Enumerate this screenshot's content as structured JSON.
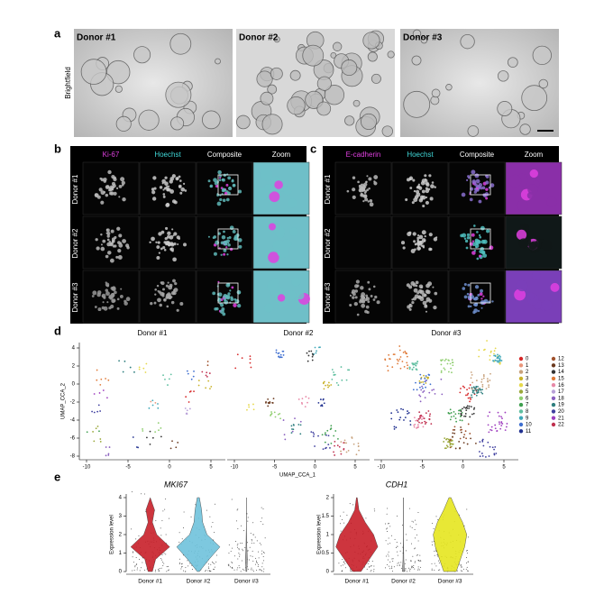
{
  "panels": {
    "a": {
      "label": "a",
      "row_label": "Brightfield",
      "donors": [
        "Donor #1",
        "Donor #2",
        "Donor #3"
      ]
    },
    "b": {
      "label": "b",
      "columns": [
        "Ki-67",
        "Hoechst",
        "Composite",
        "Zoom"
      ],
      "rows": [
        "Donor #1",
        "Donor #2",
        "Donor #3"
      ]
    },
    "c": {
      "label": "c",
      "columns": [
        "E-cadherin",
        "Hoechst",
        "Composite",
        "Zoom"
      ],
      "rows": [
        "Donor #1",
        "Donor #2",
        "Donor #3"
      ]
    },
    "d": {
      "label": "d",
      "titles": [
        "Donor #1",
        "Donor #2",
        "Donor #3"
      ],
      "y_axis_label": "UMAP_CCA_2",
      "x_axis_label": "UMAP_CCA_1",
      "yticks": [
        "4",
        "2",
        "0",
        "-2",
        "-4",
        "-6",
        "-8"
      ],
      "xticks": [
        "-10",
        "-5",
        "0",
        "5"
      ],
      "clusters": [
        {
          "label": "0",
          "color": "#d62728"
        },
        {
          "label": "1",
          "color": "#e9967a"
        },
        {
          "label": "2",
          "color": "#c8a27c"
        },
        {
          "label": "3",
          "color": "#c9b22a"
        },
        {
          "label": "4",
          "color": "#e6d84a"
        },
        {
          "label": "5",
          "color": "#9aa83a"
        },
        {
          "label": "6",
          "color": "#8fce6f"
        },
        {
          "label": "7",
          "color": "#3f9f4f"
        },
        {
          "label": "8",
          "color": "#5fbfa0"
        },
        {
          "label": "9",
          "color": "#3fa8b8"
        },
        {
          "label": "10",
          "color": "#3f6fd0"
        },
        {
          "label": "11",
          "color": "#1f2f8f"
        },
        {
          "label": "12",
          "color": "#a0522d"
        },
        {
          "label": "13",
          "color": "#6b3a1f"
        },
        {
          "label": "14",
          "color": "#333333"
        },
        {
          "label": "15",
          "color": "#e07b39"
        },
        {
          "label": "16",
          "color": "#e88aa8"
        },
        {
          "label": "17",
          "color": "#b8a0d8"
        },
        {
          "label": "18",
          "color": "#8a5fbf"
        },
        {
          "label": "19",
          "color": "#2f7f7f"
        },
        {
          "label": "20",
          "color": "#3f3f9f"
        },
        {
          "label": "21",
          "color": "#9f3fbf"
        },
        {
          "label": "22",
          "color": "#c0304f"
        }
      ]
    },
    "e": {
      "label": "e",
      "plots": [
        {
          "gene": "MKI67",
          "y_axis_label": "Expression level",
          "yticks": [
            "0",
            "1",
            "2",
            "3",
            "4"
          ],
          "categories": [
            "Donor #1",
            "Donor #2",
            "Donor #3"
          ],
          "colors": [
            "#c8202a",
            "#6fc3dc",
            "#999999"
          ]
        },
        {
          "gene": "CDH1",
          "y_axis_label": "Expression level",
          "yticks": [
            "0",
            "0.5",
            "1",
            "1.5",
            "2"
          ],
          "categories": [
            "Donor #1",
            "Donor #2",
            "Donor #3"
          ],
          "colors": [
            "#c8202a",
            "#999999",
            "#e6e620"
          ]
        }
      ]
    }
  }
}
